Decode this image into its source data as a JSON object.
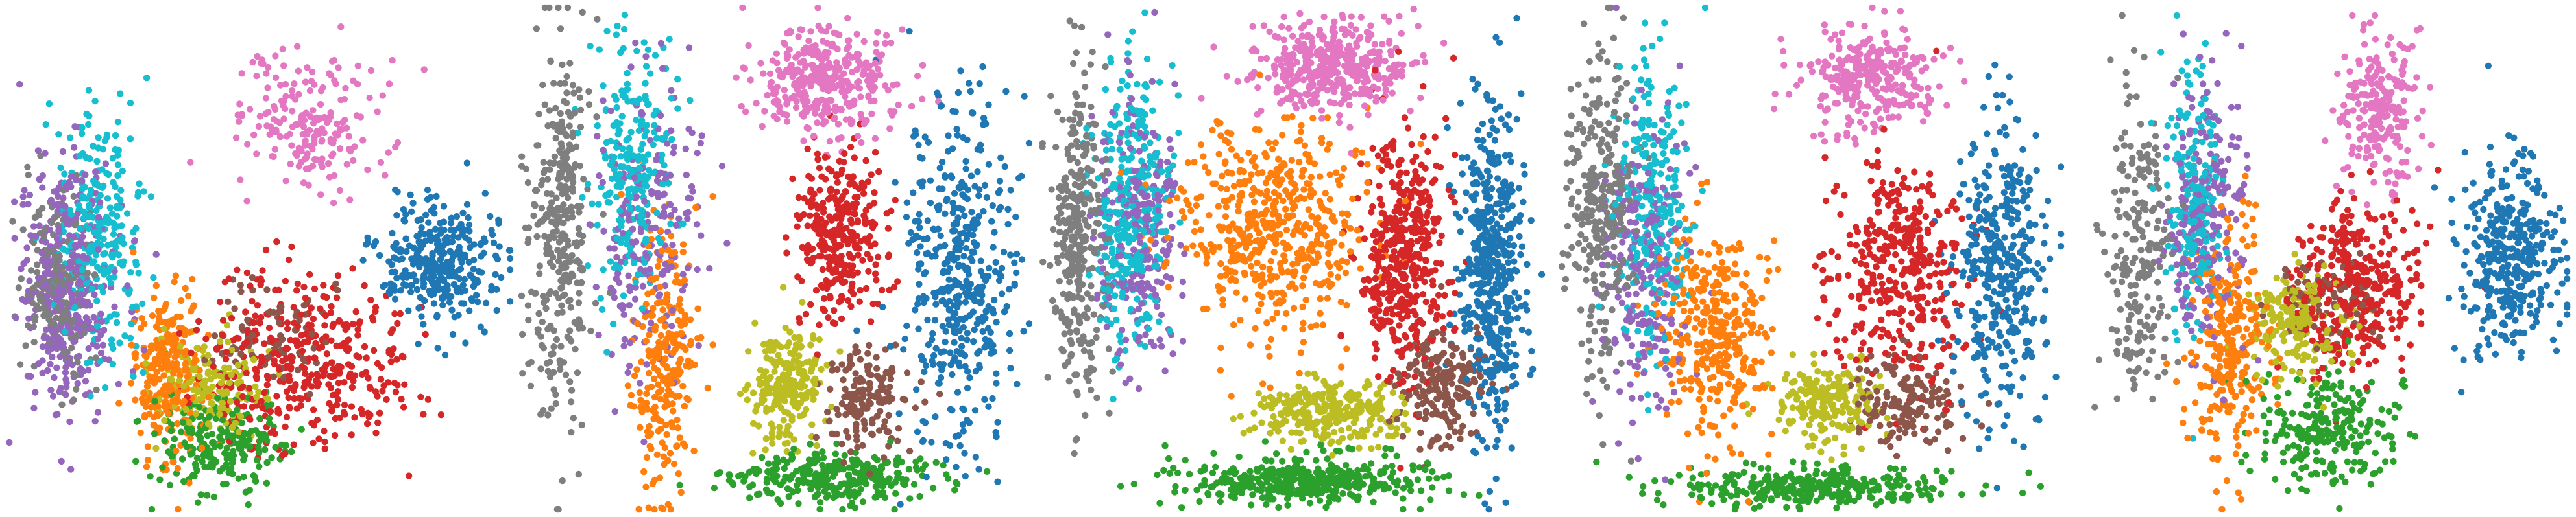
{
  "figure": {
    "title": "",
    "panel_count": 5
  },
  "palette": {
    "blue": "#1f77b4",
    "orange": "#ff7f0e",
    "green": "#2ca02c",
    "red": "#d62728",
    "purple": "#9467bd",
    "brown": "#8c564b",
    "pink": "#e377c2",
    "gray": "#7f7f7f",
    "olive": "#bcbd22",
    "cyan": "#17becf"
  },
  "chart_data": [
    {
      "type": "scatter",
      "title": "",
      "xlabel": "",
      "ylabel": "",
      "axes_visible": false,
      "grid": false,
      "legend": "none",
      "xlim": [
        0,
        100
      ],
      "ylim": [
        0,
        100
      ],
      "clusters": [
        {
          "color": "purple",
          "center": [
            12,
            45
          ],
          "spread": [
            8,
            22
          ],
          "n": 380
        },
        {
          "color": "cyan",
          "center": [
            18,
            55
          ],
          "spread": [
            7,
            20
          ],
          "n": 260
        },
        {
          "color": "gray",
          "center": [
            10,
            45
          ],
          "spread": [
            6,
            15
          ],
          "n": 220
        },
        {
          "color": "pink",
          "center": [
            60,
            78
          ],
          "spread": [
            12,
            12
          ],
          "n": 200
        },
        {
          "color": "blue",
          "center": [
            86,
            50
          ],
          "spread": [
            10,
            11
          ],
          "n": 320
        },
        {
          "color": "red",
          "center": [
            58,
            30
          ],
          "spread": [
            17,
            14
          ],
          "n": 420
        },
        {
          "color": "orange",
          "center": [
            32,
            28
          ],
          "spread": [
            6,
            14
          ],
          "n": 260
        },
        {
          "color": "olive",
          "center": [
            40,
            25
          ],
          "spread": [
            10,
            8
          ],
          "n": 170
        },
        {
          "color": "green",
          "center": [
            42,
            14
          ],
          "spread": [
            11,
            8
          ],
          "n": 210
        },
        {
          "color": "brown",
          "center": [
            52,
            34
          ],
          "spread": [
            10,
            8
          ],
          "n": 80
        }
      ]
    },
    {
      "type": "scatter",
      "title": "",
      "xlabel": "",
      "ylabel": "",
      "axes_visible": false,
      "grid": false,
      "legend": "none",
      "xlim": [
        0,
        100
      ],
      "ylim": [
        0,
        100
      ],
      "clusters": [
        {
          "color": "gray",
          "center": [
            8,
            55
          ],
          "spread": [
            5,
            30
          ],
          "n": 330
        },
        {
          "color": "cyan",
          "center": [
            22,
            68
          ],
          "spread": [
            6,
            20
          ],
          "n": 240
        },
        {
          "color": "purple",
          "center": [
            25,
            55
          ],
          "spread": [
            8,
            25
          ],
          "n": 220
        },
        {
          "color": "pink",
          "center": [
            60,
            85
          ],
          "spread": [
            12,
            9
          ],
          "n": 360
        },
        {
          "color": "blue",
          "center": [
            86,
            48
          ],
          "spread": [
            9,
            28
          ],
          "n": 440
        },
        {
          "color": "red",
          "center": [
            62,
            55
          ],
          "spread": [
            7,
            15
          ],
          "n": 320
        },
        {
          "color": "orange",
          "center": [
            28,
            30
          ],
          "spread": [
            5,
            24
          ],
          "n": 260
        },
        {
          "color": "olive",
          "center": [
            52,
            25
          ],
          "spread": [
            6,
            9
          ],
          "n": 220
        },
        {
          "color": "brown",
          "center": [
            68,
            22
          ],
          "spread": [
            7,
            9
          ],
          "n": 160
        },
        {
          "color": "green",
          "center": [
            60,
            7
          ],
          "spread": [
            18,
            4
          ],
          "n": 300
        }
      ]
    },
    {
      "type": "scatter",
      "title": "",
      "xlabel": "",
      "ylabel": "",
      "axes_visible": false,
      "grid": false,
      "legend": "none",
      "xlim": [
        0,
        100
      ],
      "ylim": [
        0,
        100
      ],
      "clusters": [
        {
          "color": "orange",
          "center": [
            46,
            55
          ],
          "spread": [
            15,
            17
          ],
          "n": 520
        },
        {
          "color": "red",
          "center": [
            72,
            50
          ],
          "spread": [
            7,
            20
          ],
          "n": 440
        },
        {
          "color": "olive",
          "center": [
            58,
            20
          ],
          "spread": [
            13,
            5
          ],
          "n": 260
        },
        {
          "color": "green",
          "center": [
            52,
            6
          ],
          "spread": [
            20,
            4
          ],
          "n": 420
        },
        {
          "color": "pink",
          "center": [
            58,
            88
          ],
          "spread": [
            13,
            7
          ],
          "n": 420
        },
        {
          "color": "blue",
          "center": [
            90,
            48
          ],
          "spread": [
            5,
            28
          ],
          "n": 480
        },
        {
          "color": "gray",
          "center": [
            8,
            55
          ],
          "spread": [
            4,
            28
          ],
          "n": 320
        },
        {
          "color": "cyan",
          "center": [
            18,
            60
          ],
          "spread": [
            6,
            24
          ],
          "n": 320
        },
        {
          "color": "purple",
          "center": [
            20,
            55
          ],
          "spread": [
            7,
            22
          ],
          "n": 240
        },
        {
          "color": "brown",
          "center": [
            80,
            25
          ],
          "spread": [
            7,
            10
          ],
          "n": 200
        }
      ]
    },
    {
      "type": "scatter",
      "title": "",
      "xlabel": "",
      "ylabel": "",
      "axes_visible": false,
      "grid": false,
      "legend": "none",
      "xlim": [
        0,
        100
      ],
      "ylim": [
        0,
        100
      ],
      "clusters": [
        {
          "color": "gray",
          "center": [
            10,
            60
          ],
          "spread": [
            5,
            25
          ],
          "n": 300
        },
        {
          "color": "cyan",
          "center": [
            20,
            60
          ],
          "spread": [
            6,
            25
          ],
          "n": 260
        },
        {
          "color": "purple",
          "center": [
            18,
            50
          ],
          "spread": [
            7,
            25
          ],
          "n": 220
        },
        {
          "color": "pink",
          "center": [
            62,
            85
          ],
          "spread": [
            11,
            8
          ],
          "n": 300
        },
        {
          "color": "blue",
          "center": [
            88,
            48
          ],
          "spread": [
            7,
            24
          ],
          "n": 380
        },
        {
          "color": "red",
          "center": [
            68,
            48
          ],
          "spread": [
            11,
            18
          ],
          "n": 380
        },
        {
          "color": "orange",
          "center": [
            32,
            35
          ],
          "spread": [
            9,
            18
          ],
          "n": 340
        },
        {
          "color": "olive",
          "center": [
            54,
            22
          ],
          "spread": [
            8,
            7
          ],
          "n": 200
        },
        {
          "color": "brown",
          "center": [
            70,
            22
          ],
          "spread": [
            9,
            8
          ],
          "n": 160
        },
        {
          "color": "green",
          "center": [
            50,
            5
          ],
          "spread": [
            22,
            3
          ],
          "n": 320
        }
      ]
    },
    {
      "type": "scatter",
      "title": "",
      "xlabel": "",
      "ylabel": "",
      "axes_visible": false,
      "grid": false,
      "legend": "none",
      "xlim": [
        0,
        100
      ],
      "ylim": [
        0,
        100
      ],
      "clusters": [
        {
          "color": "gray",
          "center": [
            14,
            55
          ],
          "spread": [
            6,
            25
          ],
          "n": 220
        },
        {
          "color": "purple",
          "center": [
            27,
            60
          ],
          "spread": [
            6,
            22
          ],
          "n": 230
        },
        {
          "color": "cyan",
          "center": [
            25,
            62
          ],
          "spread": [
            5,
            22
          ],
          "n": 200
        },
        {
          "color": "pink",
          "center": [
            62,
            80
          ],
          "spread": [
            7,
            14
          ],
          "n": 220
        },
        {
          "color": "blue",
          "center": [
            88,
            52
          ],
          "spread": [
            8,
            16
          ],
          "n": 360
        },
        {
          "color": "red",
          "center": [
            57,
            45
          ],
          "spread": [
            10,
            13
          ],
          "n": 360
        },
        {
          "color": "orange",
          "center": [
            32,
            35
          ],
          "spread": [
            6,
            20
          ],
          "n": 280
        },
        {
          "color": "olive",
          "center": [
            45,
            38
          ],
          "spread": [
            8,
            9
          ],
          "n": 200
        },
        {
          "color": "green",
          "center": [
            52,
            16
          ],
          "spread": [
            11,
            9
          ],
          "n": 240
        },
        {
          "color": "brown",
          "center": [
            52,
            42
          ],
          "spread": [
            8,
            8
          ],
          "n": 80
        }
      ]
    }
  ]
}
